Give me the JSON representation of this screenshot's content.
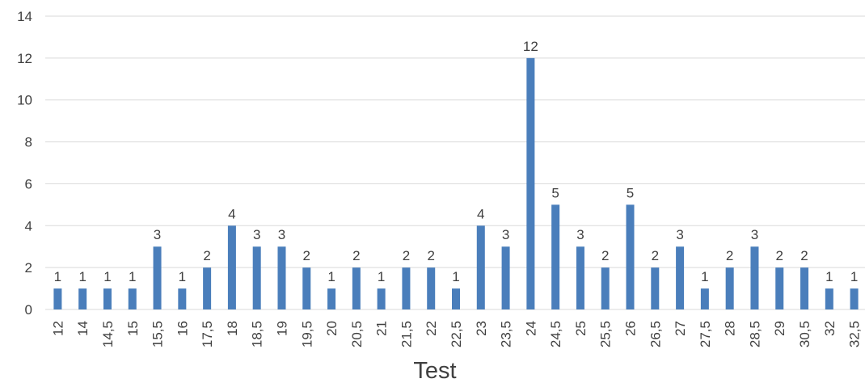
{
  "chart_data": {
    "type": "bar",
    "title": "",
    "xlabel": "Test",
    "ylabel": "",
    "ylim": [
      0,
      14
    ],
    "yticks": [
      0,
      2,
      4,
      6,
      8,
      10,
      12,
      14
    ],
    "grid": true,
    "legend": "none",
    "data_labels": true,
    "categories": [
      "12",
      "14",
      "14,5",
      "15",
      "15,5",
      "16",
      "17,5",
      "18",
      "18,5",
      "19",
      "19,5",
      "20",
      "20,5",
      "21",
      "21,5",
      "22",
      "22,5",
      "23",
      "23,5",
      "24",
      "24,5",
      "25",
      "25,5",
      "26",
      "26,5",
      "27",
      "27,5",
      "28",
      "28,5",
      "29",
      "30,5",
      "32",
      "32,5"
    ],
    "values": [
      1,
      1,
      1,
      1,
      3,
      1,
      2,
      4,
      3,
      3,
      2,
      1,
      2,
      1,
      2,
      2,
      1,
      4,
      3,
      12,
      5,
      3,
      2,
      5,
      2,
      3,
      1,
      2,
      3,
      2,
      2,
      1,
      1
    ],
    "colors": {
      "bar": "#4a7ebb",
      "grid": "#d9d9d9",
      "text": "#404040"
    }
  }
}
